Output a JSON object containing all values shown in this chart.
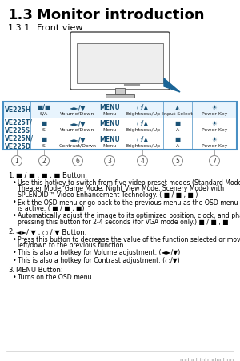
{
  "title_num": "1.3",
  "title_text": "Monitor introduction",
  "subtitle_num": "1.3.1",
  "subtitle_text": "Front view",
  "bg_color": "#ffffff",
  "text_color": "#000000",
  "blue_border": "#4a90c4",
  "model_blue": "#1a5276",
  "table_rows": [
    {
      "model": "VE225H",
      "col1_icon": "■/■",
      "col1_label": "S/A",
      "col2_icon": "◄►/▼",
      "col2_label": "Volume/Down",
      "col3_icon": "MENU",
      "col3_label": "Menu",
      "col4_icon": "○/▲",
      "col4_label": "Brightness/Up",
      "col5_icon": "◭",
      "col5_label": "Input Select",
      "col6_icon": "☀",
      "col6_label": "Power Key",
      "highlight": true
    },
    {
      "model": "VE225T/\nVE225S",
      "col1_icon": "■",
      "col1_label": "S",
      "col2_icon": "◄►/▼",
      "col2_label": "Volume/Down",
      "col3_icon": "MENU",
      "col3_label": "Menu",
      "col4_icon": "○/▲",
      "col4_label": "Brightness/Up",
      "col5_icon": "■",
      "col5_label": "A",
      "col6_icon": "☀",
      "col6_label": "Power Key",
      "highlight": false
    },
    {
      "model": "VE225N/\nVE225D",
      "col1_icon": "■",
      "col1_label": "S",
      "col2_icon": "◄►/▼",
      "col2_label": "Contrast/Down",
      "col3_icon": "MENU",
      "col3_label": "Menu",
      "col4_icon": "○/▲",
      "col4_label": "Brightness/Up",
      "col5_icon": "■",
      "col5_label": "A",
      "col6_icon": "☀",
      "col6_label": "Power Key",
      "highlight": false
    }
  ],
  "circle_nums": [
    "2",
    "6",
    "3",
    "4",
    "5",
    "1",
    "7"
  ],
  "footer_text": "roduct introduction"
}
